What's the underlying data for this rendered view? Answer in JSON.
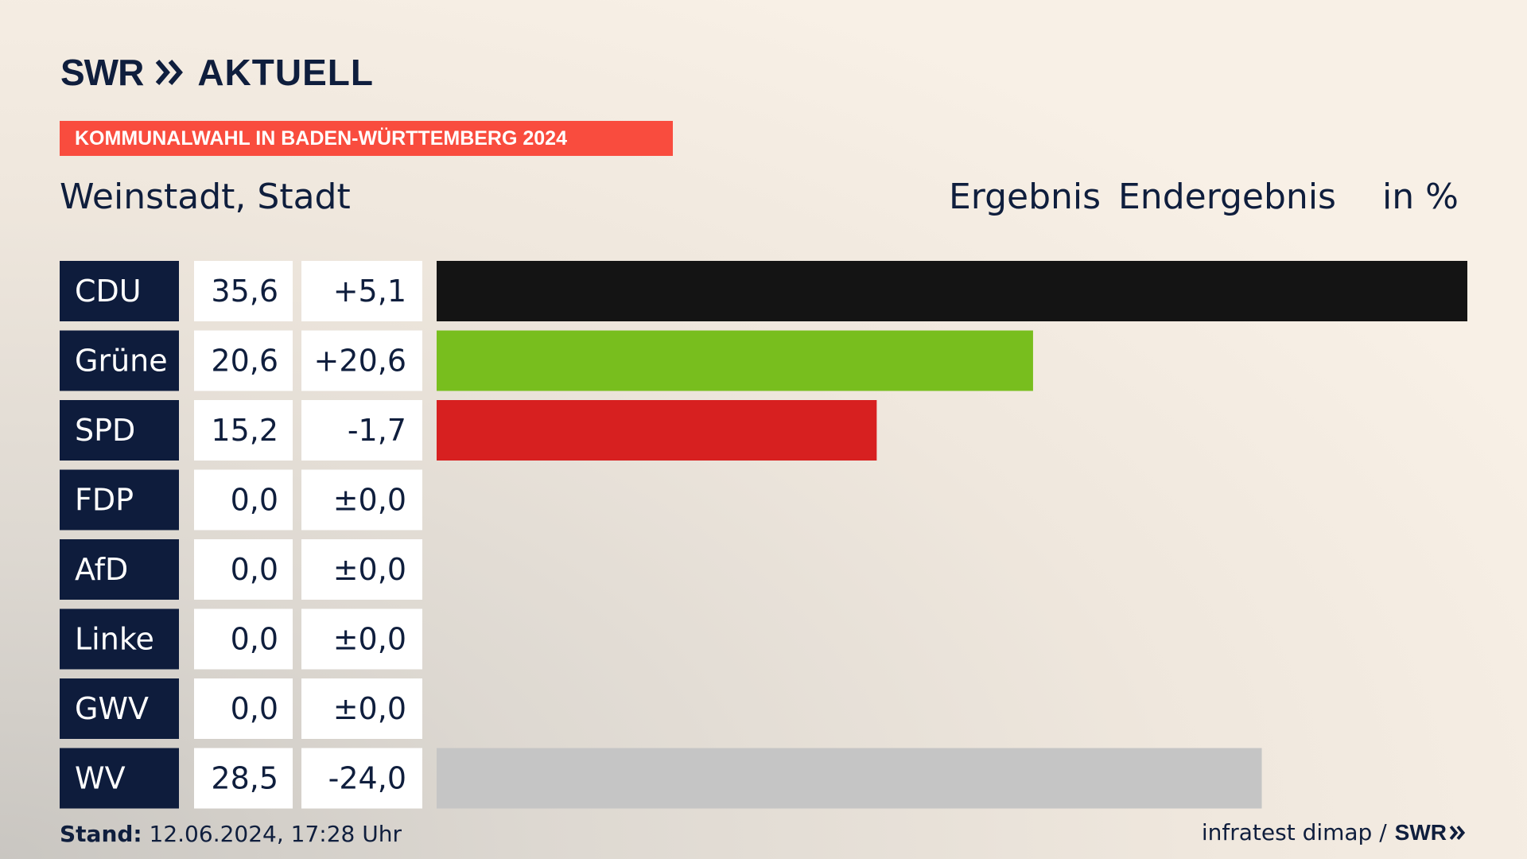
{
  "header": {
    "logo_left": "SWR",
    "logo_right": "AKTUELL",
    "banner": "KOMMUNALWAHL IN BADEN-WÜRTTEMBERG 2024",
    "place": "Weinstadt, Stadt",
    "col_result": "Ergebnis",
    "col_status": "Endergebnis",
    "col_unit": "in %"
  },
  "footer": {
    "stand_label": "Stand:",
    "stand_value": "12.06.2024, 17:28 Uhr",
    "source": "infratest dimap /",
    "source_logo": "SWR"
  },
  "colors": {
    "label_bg": "#0e1c3c",
    "cell_bg": "#ffffff",
    "banner": "#f94c3e"
  },
  "chart_data": {
    "type": "bar",
    "orientation": "horizontal",
    "unit": "%",
    "xlim": [
      0,
      35.6
    ],
    "categories": [
      "CDU",
      "Grüne",
      "SPD",
      "FDP",
      "AfD",
      "Linke",
      "GWV",
      "WV"
    ],
    "values": [
      35.6,
      20.6,
      15.2,
      0.0,
      0.0,
      0.0,
      0.0,
      28.5
    ],
    "value_labels": [
      "35,6",
      "20,6",
      "15,2",
      "0,0",
      "0,0",
      "0,0",
      "0,0",
      "28,5"
    ],
    "change_labels": [
      "+5,1",
      "+20,6",
      "-1,7",
      "±0,0",
      "±0,0",
      "±0,0",
      "±0,0",
      "-24,0"
    ],
    "bar_colors": [
      "#141414",
      "#78be1e",
      "#d72020",
      "#f5c400",
      "#009ee0",
      "#be3075",
      "#8a8a8a",
      "#c5c5c5"
    ]
  }
}
